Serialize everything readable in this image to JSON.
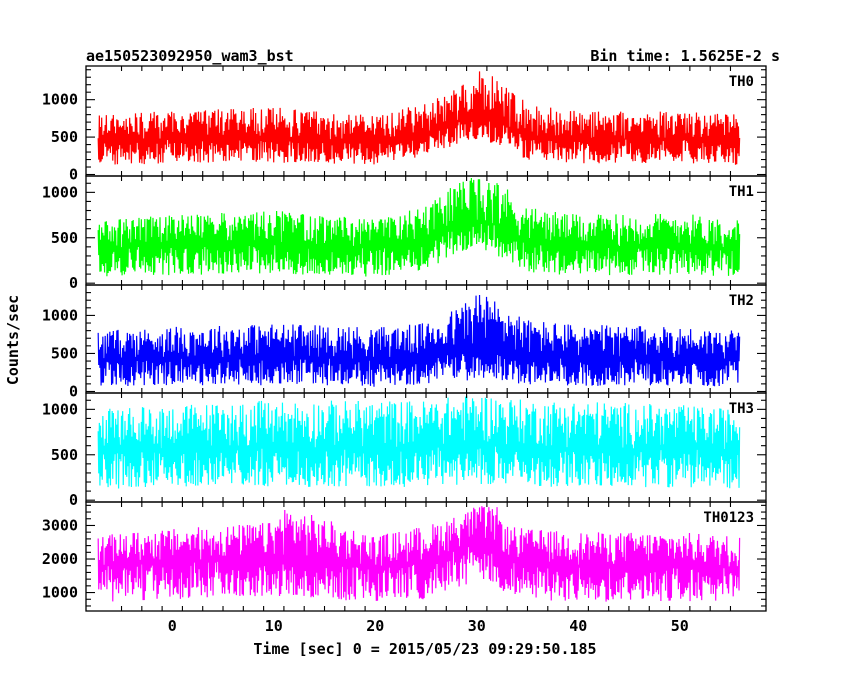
{
  "header": {
    "title": "ae150523092950_wam3_bst",
    "bin_time": "Bin time: 1.5625E-2 s"
  },
  "chart_data": {
    "type": "line",
    "xlabel": "Time [sec] 0 = 2015/05/23 09:29:50.185",
    "ylabel": "Counts/sec",
    "xlim": [
      -8.5,
      58.5
    ],
    "x_ticks": [
      0,
      10,
      20,
      30,
      40,
      50
    ],
    "x_start": -7.3,
    "x_end": 55.9,
    "grid": false,
    "panels": [
      {
        "name": "TH0",
        "color": "#ff0000",
        "ylim": [
          -20,
          1450
        ],
        "yticks": [
          0,
          500,
          1000
        ],
        "series_profile": {
          "t": [
            -7.3,
            0,
            10,
            20,
            25,
            28,
            30,
            32,
            35,
            40,
            50,
            55.9
          ],
          "baseline": [
            450,
            480,
            500,
            430,
            550,
            700,
            780,
            720,
            520,
            470,
            480,
            430
          ],
          "lower": [
            120,
            150,
            160,
            130,
            250,
            400,
            470,
            380,
            200,
            150,
            150,
            120
          ],
          "upper": [
            800,
            850,
            900,
            800,
            950,
            1200,
            1400,
            1300,
            950,
            850,
            850,
            800
          ]
        }
      },
      {
        "name": "TH1",
        "color": "#00ff00",
        "ylim": [
          -20,
          1180
        ],
        "yticks": [
          0,
          500,
          1000
        ],
        "series_profile": {
          "t": [
            -7.3,
            0,
            10,
            20,
            25,
            28,
            30,
            32,
            35,
            40,
            50,
            55.9
          ],
          "baseline": [
            380,
            420,
            430,
            380,
            480,
            620,
            680,
            640,
            440,
            400,
            420,
            370
          ],
          "lower": [
            60,
            90,
            100,
            70,
            150,
            300,
            380,
            300,
            120,
            80,
            90,
            60
          ],
          "upper": [
            700,
            750,
            800,
            700,
            850,
            1100,
            1180,
            1150,
            850,
            750,
            780,
            700
          ]
        }
      },
      {
        "name": "TH2",
        "color": "#0000ff",
        "ylim": [
          -20,
          1400
        ],
        "yticks": [
          0,
          500,
          1000
        ],
        "series_profile": {
          "t": [
            -7.3,
            0,
            10,
            20,
            25,
            28,
            30,
            32,
            35,
            40,
            50,
            55.9
          ],
          "baseline": [
            420,
            440,
            450,
            420,
            460,
            520,
            560,
            540,
            460,
            430,
            440,
            420
          ],
          "lower": [
            60,
            80,
            80,
            60,
            90,
            130,
            160,
            140,
            90,
            70,
            80,
            60
          ],
          "upper": [
            800,
            850,
            900,
            850,
            900,
            1100,
            1350,
            1200,
            950,
            880,
            850,
            800
          ]
        }
      },
      {
        "name": "TH3",
        "color": "#00ffff",
        "ylim": [
          -20,
          1180
        ],
        "yticks": [
          0,
          500,
          1000
        ],
        "series_profile": {
          "t": [
            -7.3,
            0,
            10,
            20,
            25,
            28,
            30,
            32,
            35,
            40,
            50,
            55.9
          ],
          "baseline": [
            540,
            560,
            570,
            560,
            580,
            600,
            610,
            600,
            580,
            560,
            560,
            550
          ],
          "lower": [
            120,
            150,
            150,
            140,
            150,
            170,
            180,
            170,
            150,
            140,
            140,
            120
          ],
          "upper": [
            1000,
            1050,
            1100,
            1100,
            1100,
            1150,
            1180,
            1150,
            1100,
            1100,
            1050,
            1000
          ]
        }
      },
      {
        "name": "TH0123",
        "color": "#ff00ff",
        "ylim": [
          450,
          3700
        ],
        "yticks": [
          1000,
          2000,
          3000
        ],
        "series_profile": {
          "t": [
            -7.3,
            0,
            10,
            11,
            20,
            25,
            28,
            30,
            32,
            33,
            35,
            40,
            50,
            55.9
          ],
          "baseline": [
            1800,
            1900,
            2000,
            2100,
            1750,
            1900,
            2300,
            2500,
            2400,
            2000,
            1900,
            1800,
            1800,
            1700
          ],
          "lower": [
            700,
            800,
            850,
            900,
            700,
            800,
            1100,
            1300,
            1200,
            850,
            800,
            700,
            750,
            650
          ],
          "upper": [
            2700,
            2900,
            3100,
            3600,
            2700,
            3000,
            3300,
            3600,
            3550,
            3000,
            2900,
            2800,
            2800,
            2700
          ]
        }
      }
    ]
  }
}
